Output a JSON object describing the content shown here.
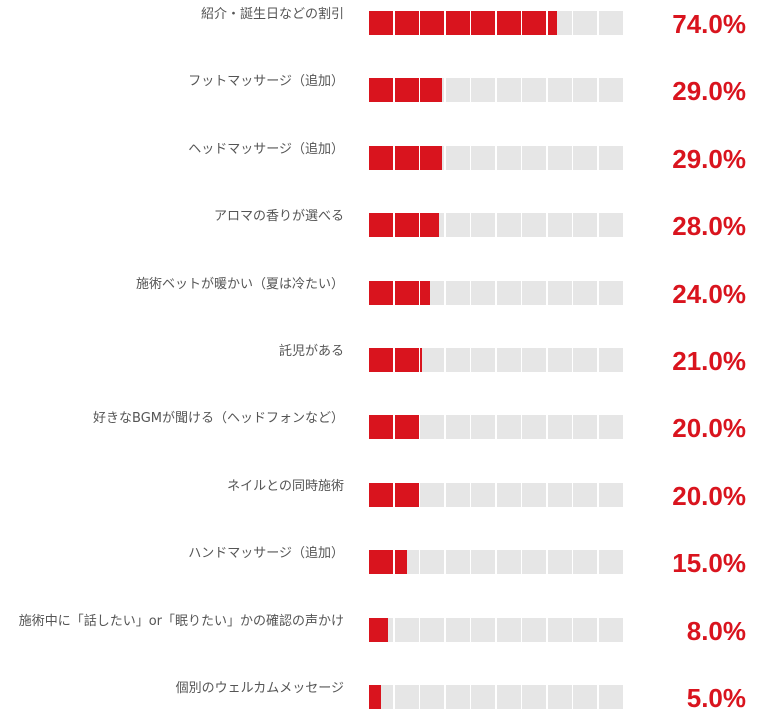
{
  "colors": {
    "accent": "#d9141e",
    "track": "#e6e6e6",
    "label": "#555555"
  },
  "chart_data": {
    "type": "bar",
    "orientation": "horizontal",
    "segments": 10,
    "categories": [
      "紹介・誕生日などの割引",
      "フットマッサージ（追加）",
      "ヘッドマッサージ（追加）",
      "アロマの香りが選べる",
      "施術ベットが暖かい（夏は冷たい）",
      "託児がある",
      "好きなBGMが聞ける（ヘッドフォンなど）",
      "ネイルとの同時施術",
      "ハンドマッサージ（追加）",
      "施術中に「話したい」or「眠りたい」かの確認の声かけ",
      "個別のウェルカムメッセージ"
    ],
    "values": [
      74.0,
      29.0,
      29.0,
      28.0,
      24.0,
      21.0,
      20.0,
      20.0,
      15.0,
      8.0,
      5.0
    ],
    "value_labels": [
      "74.0%",
      "29.0%",
      "29.0%",
      "28.0%",
      "24.0%",
      "21.0%",
      "20.0%",
      "20.0%",
      "15.0%",
      "8.0%",
      "5.0%"
    ],
    "xlim": [
      0,
      100
    ],
    "grid": false,
    "legend": "none"
  }
}
